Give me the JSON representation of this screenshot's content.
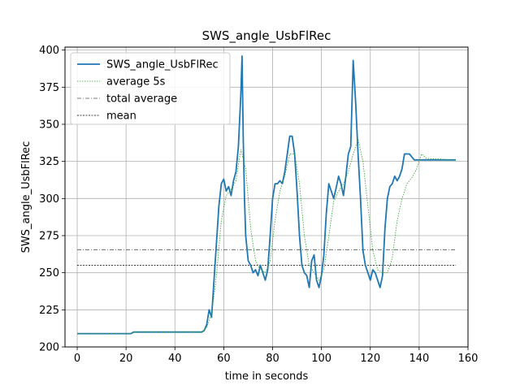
{
  "chart_data": {
    "type": "line",
    "title": "SWS_angle_UsbFlRec",
    "xlabel": "time in seconds",
    "ylabel": "SWS_angle_UsbFlRec",
    "xlim": [
      -5,
      160
    ],
    "ylim": [
      200,
      402
    ],
    "xticks": [
      0,
      20,
      40,
      60,
      80,
      100,
      120,
      140,
      160
    ],
    "yticks": [
      200,
      225,
      250,
      275,
      300,
      325,
      350,
      375,
      400
    ],
    "grid": true,
    "legend_position": "top-left",
    "colors": {
      "signal": "#1f77b4",
      "average": "#2ca02c",
      "total_average": "#555555",
      "mean": "#000000"
    },
    "series": [
      {
        "name": "SWS_angle_UsbFlRec",
        "style": "solid",
        "x": [
          0,
          22,
          23,
          51,
          52,
          53,
          54,
          55,
          56,
          57,
          58,
          59,
          60,
          61,
          62,
          63,
          64,
          65,
          66,
          67,
          67.5,
          68,
          68.5,
          69,
          70,
          71,
          72,
          73,
          74,
          75,
          76,
          77,
          78,
          79,
          80,
          81,
          82,
          83,
          84,
          85,
          86,
          87,
          88,
          89,
          90,
          91,
          92,
          93,
          94,
          95,
          96,
          97,
          98,
          99,
          100,
          101,
          102,
          103,
          104,
          105,
          106,
          107,
          108,
          109,
          110,
          111,
          112,
          113,
          114,
          115,
          116,
          117,
          118,
          119,
          120,
          121,
          122,
          123,
          124,
          125,
          126,
          127,
          128,
          129,
          130,
          131,
          132,
          133,
          134,
          135,
          136,
          137,
          138,
          139,
          140,
          141,
          142,
          143,
          144,
          145,
          155
        ],
        "values": [
          209,
          209,
          210,
          210,
          211,
          215,
          225,
          220,
          245,
          270,
          295,
          310,
          313,
          305,
          308,
          302,
          312,
          318,
          335,
          370,
          396,
          340,
          300,
          275,
          258,
          255,
          250,
          252,
          248,
          255,
          250,
          245,
          252,
          275,
          300,
          310,
          310,
          312,
          310,
          318,
          330,
          342,
          342,
          330,
          305,
          275,
          255,
          250,
          248,
          240,
          258,
          262,
          245,
          240,
          248,
          262,
          290,
          310,
          305,
          300,
          307,
          315,
          310,
          302,
          315,
          330,
          335,
          393,
          365,
          330,
          300,
          265,
          255,
          250,
          245,
          252,
          250,
          245,
          240,
          248,
          280,
          300,
          308,
          310,
          315,
          312,
          315,
          320,
          330,
          330,
          330,
          328,
          326,
          326,
          326,
          326,
          326,
          326,
          326,
          326,
          326
        ]
      },
      {
        "name": "average 5s",
        "style": "dotted",
        "x": [
          0,
          22,
          23,
          51,
          53,
          55,
          57,
          59,
          61,
          63,
          65,
          67,
          69,
          71,
          73,
          75,
          77,
          79,
          81,
          83,
          85,
          87,
          89,
          91,
          93,
          95,
          97,
          99,
          101,
          103,
          105,
          107,
          109,
          111,
          113,
          115,
          117,
          119,
          121,
          123,
          125,
          127,
          129,
          131,
          133,
          135,
          137,
          139,
          141,
          143,
          155
        ],
        "values": [
          209,
          209,
          210,
          210,
          213,
          222,
          248,
          285,
          302,
          306,
          312,
          333,
          320,
          280,
          258,
          252,
          250,
          258,
          285,
          305,
          315,
          330,
          330,
          310,
          275,
          255,
          250,
          245,
          252,
          275,
          298,
          305,
          310,
          318,
          330,
          340,
          325,
          295,
          265,
          252,
          250,
          250,
          260,
          285,
          300,
          310,
          314,
          320,
          330,
          327,
          326
        ]
      },
      {
        "name": "total average",
        "style": "dashdot",
        "x": [
          0,
          155
        ],
        "values": [
          265.5,
          265.5
        ]
      },
      {
        "name": "mean",
        "style": "dashed",
        "x": [
          0,
          155
        ],
        "values": [
          255,
          255
        ]
      }
    ]
  }
}
